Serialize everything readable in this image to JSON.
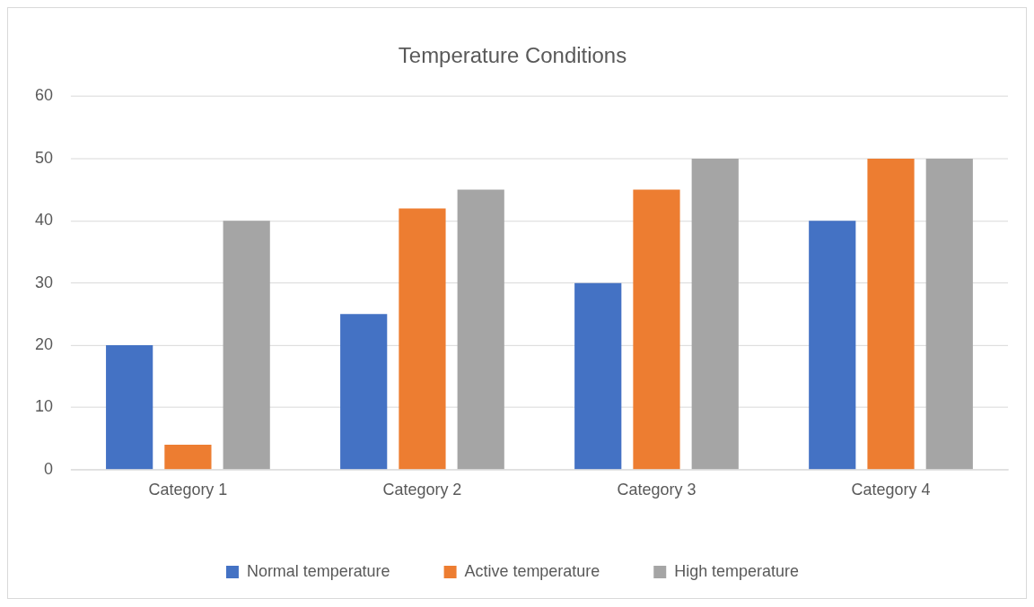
{
  "chart_data": {
    "type": "bar",
    "title": "Temperature Conditions",
    "categories": [
      "Category 1",
      "Category 2",
      "Category 3",
      "Category 4"
    ],
    "series": [
      {
        "name": "Normal temperature",
        "color": "#4472c4",
        "values": [
          20,
          25,
          30,
          40
        ]
      },
      {
        "name": "Active temperature",
        "color": "#ed7d31",
        "values": [
          4,
          42,
          45,
          50
        ]
      },
      {
        "name": "High temperature",
        "color": "#a5a5a5",
        "values": [
          40,
          45,
          50,
          50
        ]
      }
    ],
    "ylim": [
      0,
      60
    ],
    "yticks": [
      0,
      10,
      20,
      30,
      40,
      50,
      60
    ],
    "grid": "y",
    "legend": "bottom"
  }
}
